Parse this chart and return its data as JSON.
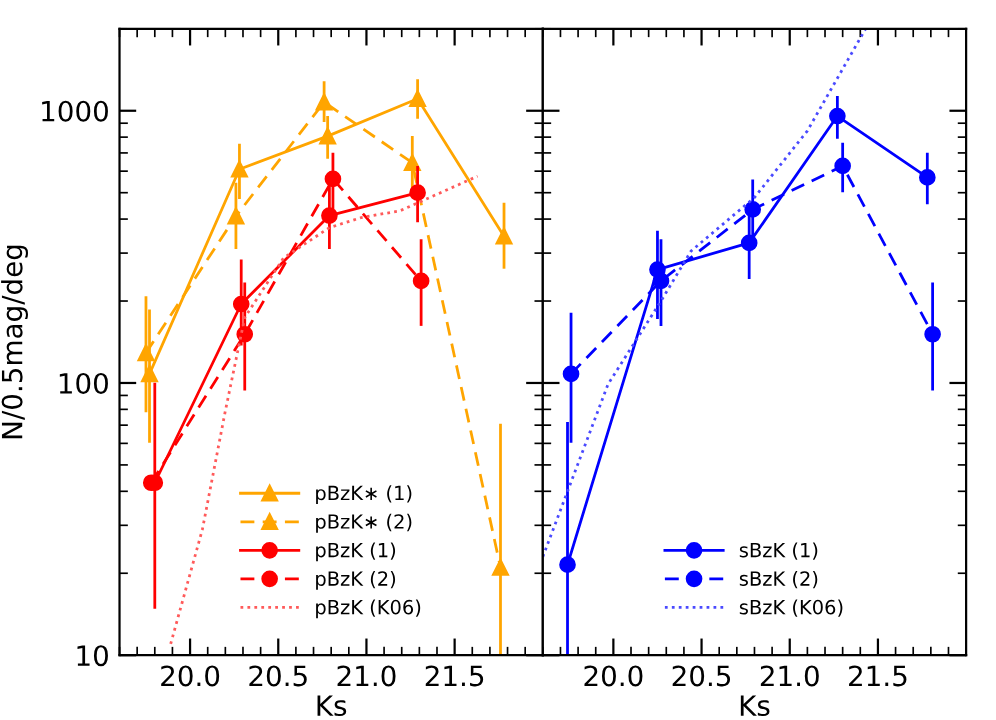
{
  "chart_data": [
    {
      "type": "line",
      "xlabel": "Ks",
      "ylabel": "N/0.5mag/deg",
      "log": "y",
      "xlim": [
        19.6,
        22.0
      ],
      "ylim": [
        10,
        2000
      ],
      "xticks": [
        {
          "value": 20.0,
          "label": "20.0"
        },
        {
          "value": 20.5,
          "label": "20.5"
        },
        {
          "value": 21.0,
          "label": "21.0"
        },
        {
          "value": 21.5,
          "label": "21.5"
        }
      ],
      "yticks": [
        10,
        100,
        1000
      ],
      "grid": false,
      "legend": "bottom",
      "series": [
        {
          "name": "pBzK∗ (1)",
          "color": "#ffa500",
          "marker": "triangle",
          "line_style": "solid",
          "x": [
            19.77,
            20.28,
            20.78,
            21.29,
            21.78
          ],
          "values": [
            108,
            610,
            807,
            1107,
            346
          ],
          "errors": [
            [
              61,
              184
            ],
            [
              480,
              747
            ],
            [
              674,
              945
            ],
            [
              945,
              1290
            ],
            [
              266,
              454
            ]
          ]
        },
        {
          "name": "pBzK∗ (2)",
          "color": "#ffa500",
          "marker": "triangle",
          "line_style": "dashed",
          "x": [
            19.75,
            20.26,
            20.76,
            21.26,
            21.76
          ],
          "values": [
            129,
            410,
            1076,
            644,
            21
          ],
          "errors": [
            [
              79,
              206
            ],
            [
              314,
              537
            ],
            [
              919,
              1268
            ],
            [
              523,
              798
            ],
            [
              10,
              70
            ]
          ]
        },
        {
          "name": "pBzK (1)",
          "color": "#ff0000",
          "marker": "circle",
          "line_style": "solid",
          "x": [
            19.8,
            20.29,
            20.79,
            21.29
          ],
          "values": [
            43,
            195,
            412,
            500
          ],
          "errors": [
            [
              15,
              99
            ],
            [
              139,
              281
            ],
            [
              314,
              537
            ],
            [
              394,
              619
            ]
          ]
        },
        {
          "name": "pBzK (2)",
          "color": "#ff0000",
          "marker": "circle",
          "line_style": "dashed",
          "x": [
            19.78,
            20.31,
            20.81,
            21.31
          ],
          "values": [
            43,
            151,
            562,
            237
          ],
          "errors": [
            null,
            [
              95,
              231
            ],
            [
              441,
              693
            ],
            [
              164,
              333
            ]
          ]
        },
        {
          "name": "pBzK (K06)",
          "color": "#ff5a5a",
          "marker": "none",
          "line_style": "dotted",
          "x": [
            19.89,
            20.07,
            20.2,
            20.31,
            20.53,
            20.79,
            20.97,
            21.19,
            21.63
          ],
          "values": [
            11,
            29,
            79,
            174,
            288,
            372,
            405,
            429,
            575
          ]
        }
      ]
    },
    {
      "type": "line",
      "xlabel": "Ks",
      "log": "y",
      "xlim": [
        19.6,
        22.0
      ],
      "ylim": [
        10,
        2000
      ],
      "xticks": [
        {
          "value": 20.0,
          "label": "20.0"
        },
        {
          "value": 20.5,
          "label": "20.5"
        },
        {
          "value": 21.0,
          "label": "21.0"
        },
        {
          "value": 21.5,
          "label": "21.5"
        }
      ],
      "yticks": [
        {
          "value": 10,
          "label": null
        },
        {
          "value": 100,
          "label": null
        },
        {
          "value": 1000,
          "label": null
        }
      ],
      "tick_labels": "x",
      "grid": false,
      "legend": "bottom",
      "series": [
        {
          "name": "sBzK (1)",
          "color": "#0000ff",
          "marker": "circle",
          "line_style": "solid",
          "x": [
            19.74,
            20.25,
            20.77,
            21.27,
            21.78
          ],
          "values": [
            21.5,
            261,
            327,
            956,
            569
          ],
          "errors": [
            [
              10,
              71
            ],
            [
              174,
              358
            ],
            [
              244,
              429
            ],
            [
              798,
              1119
            ],
            [
              459,
              693
            ]
          ]
        },
        {
          "name": "sBzK (2)",
          "color": "#0000ff",
          "marker": "circle",
          "line_style": "dashed",
          "x": [
            19.76,
            20.27,
            20.79,
            21.3,
            21.81
          ],
          "values": [
            108,
            237,
            434,
            627,
            151
          ],
          "errors": [
            [
              61,
              179
            ],
            [
              164,
              333
            ],
            [
              324,
              553
            ],
            [
              508,
              754
            ],
            [
              95,
              231
            ]
          ]
        },
        {
          "name": "sBzK (K06)",
          "color": "#4a4aff",
          "marker": "none",
          "line_style": "dotted",
          "x": [
            19.6,
            19.97,
            20.27,
            20.44,
            20.8,
            21.1,
            21.43
          ],
          "values": [
            23,
            99,
            200,
            305,
            480,
            844,
            2000
          ]
        }
      ]
    }
  ]
}
